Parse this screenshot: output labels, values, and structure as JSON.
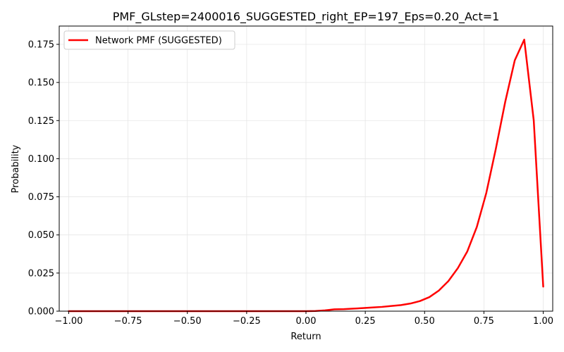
{
  "chart_data": {
    "type": "line",
    "title": "PMF_GLstep=2400016_SUGGESTED_right_EP=197_Eps=0.20_Act=1",
    "xlabel": "Return",
    "ylabel": "Probability",
    "xlim": [
      -1.04,
      1.04
    ],
    "ylim": [
      0.0,
      0.187
    ],
    "grid": true,
    "legend_position": "upper-left",
    "x_ticks": [
      -1.0,
      -0.75,
      -0.5,
      -0.25,
      0.0,
      0.25,
      0.5,
      0.75,
      1.0
    ],
    "x_tick_labels": [
      "−1.00",
      "−0.75",
      "−0.50",
      "−0.25",
      "0.00",
      "0.25",
      "0.50",
      "0.75",
      "1.00"
    ],
    "y_ticks": [
      0.0,
      0.025,
      0.05,
      0.075,
      0.1,
      0.125,
      0.15,
      0.175
    ],
    "y_tick_labels": [
      "0.000",
      "0.025",
      "0.050",
      "0.075",
      "0.100",
      "0.125",
      "0.150",
      "0.175"
    ],
    "series": [
      {
        "name": "Network PMF (SUGGESTED)",
        "color": "#ff0000",
        "x": [
          -1.0,
          -0.96,
          -0.92,
          -0.88,
          -0.84,
          -0.8,
          -0.76,
          -0.72,
          -0.68,
          -0.64,
          -0.6,
          -0.56,
          -0.52,
          -0.48,
          -0.44,
          -0.4,
          -0.36,
          -0.32,
          -0.28,
          -0.24,
          -0.2,
          -0.16,
          -0.12,
          -0.08,
          -0.04,
          0.0,
          0.04,
          0.08,
          0.12,
          0.16,
          0.2,
          0.24,
          0.28,
          0.32,
          0.36,
          0.4,
          0.44,
          0.48,
          0.52,
          0.56,
          0.6,
          0.64,
          0.68,
          0.72,
          0.76,
          0.8,
          0.84,
          0.88,
          0.92,
          0.96,
          1.0
        ],
        "y": [
          0.0,
          0.0,
          0.0,
          0.0,
          0.0,
          0.0,
          0.0,
          0.0,
          0.0,
          0.0,
          0.0,
          0.0,
          0.0,
          0.0,
          0.0,
          0.0,
          0.0,
          0.0,
          0.0,
          0.0,
          0.0,
          0.0,
          0.0,
          0.0,
          0.0,
          0.0,
          0.0001,
          0.0005,
          0.0012,
          0.0013,
          0.0017,
          0.002,
          0.0024,
          0.0028,
          0.0034,
          0.004,
          0.005,
          0.0066,
          0.0092,
          0.0135,
          0.0197,
          0.0282,
          0.0392,
          0.0552,
          0.0775,
          0.1063,
          0.1374,
          0.1645,
          0.1781,
          0.1251,
          0.0161
        ]
      }
    ]
  }
}
